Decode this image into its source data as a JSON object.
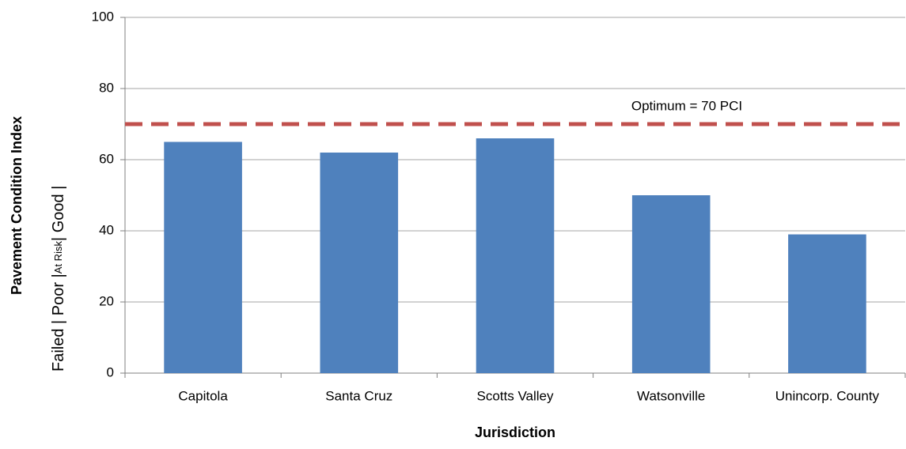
{
  "chart_data": {
    "type": "bar",
    "categories": [
      "Capitola",
      "Santa Cruz",
      "Scotts Valley",
      "Watsonville",
      "Unincorp. County"
    ],
    "values": [
      65,
      62,
      66,
      50,
      39
    ],
    "color": "#4f81bd",
    "ylim": [
      0,
      100
    ],
    "yticks": [
      0,
      20,
      40,
      60,
      80,
      100
    ],
    "grid": true,
    "y_label": "Pavement Condition Index",
    "y_condition_labels": [
      "Failed  |  Poor  |",
      "At Risk",
      "|  Good        |"
    ],
    "x_label": "Jurisdiction",
    "reference_line": {
      "value": 70,
      "label": "Optimum = 70 PCI",
      "color": "#c0504d"
    }
  }
}
